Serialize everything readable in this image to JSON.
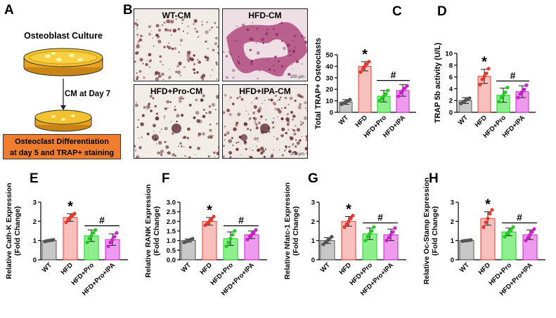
{
  "panels": {
    "A": {
      "letter": "A",
      "culture_label": "Osteoblast Culture",
      "arrow_label": "CM at Day 7",
      "box_line1": "Osteoclast Differentiation",
      "box_line2": "at day 5 and TRAP+ staining",
      "box_color": "#f07d2e"
    },
    "B": {
      "letter": "B",
      "images": [
        {
          "label": "WT-CM",
          "scale": ""
        },
        {
          "label": "HFD-CM",
          "scale": "200 µm"
        },
        {
          "label": "HFD+Pro-CM",
          "scale": ""
        },
        {
          "label": "HFD+IPA-CM",
          "scale": "200 µm"
        }
      ]
    }
  },
  "colors": {
    "WT": "#c8c8c8",
    "HFD": "#f8c0bd",
    "Pro": "#8df08d",
    "IPA": "#ee9aee",
    "WT_dot": "#555555",
    "HFD_dot": "#e8392f",
    "Pro_dot": "#22cc22",
    "IPA_dot": "#cc22cc"
  },
  "chart_data": [
    {
      "letter": "C",
      "type": "bar",
      "ylabel": "Total TRAP+ Osteoclasts",
      "ylim": [
        0,
        50
      ],
      "yticks": [
        "0",
        "10",
        "20",
        "30",
        "40",
        "50"
      ],
      "categories": [
        "WT",
        "HFD",
        "HFD+Pro",
        "HFD+IPA"
      ],
      "values": [
        9,
        40,
        14,
        19
      ],
      "errors": [
        2,
        4,
        5,
        5
      ],
      "points": [
        [
          7,
          8,
          9,
          10,
          11
        ],
        [
          35,
          38,
          40,
          42,
          44
        ],
        [
          10,
          12,
          14,
          16,
          19
        ],
        [
          14,
          17,
          19,
          21,
          23
        ]
      ],
      "star": "*",
      "hash": "#"
    },
    {
      "letter": "D",
      "type": "bar",
      "ylabel": "TRAP 5b activity (U/L)",
      "ylim": [
        0,
        10
      ],
      "yticks": [
        "0",
        "2",
        "4",
        "6",
        "8",
        "10"
      ],
      "categories": [
        "WT",
        "HFD",
        "HFD+Pro",
        "HFD+IPA"
      ],
      "values": [
        2,
        6.1,
        2.9,
        3.5
      ],
      "errors": [
        0.5,
        1.2,
        1.2,
        1.0
      ],
      "points": [
        [
          1.5,
          1.8,
          2.0,
          2.2,
          2.4
        ],
        [
          4.7,
          5.6,
          6.1,
          6.6,
          7.4
        ],
        [
          1.8,
          2.5,
          2.9,
          3.4,
          4.2
        ],
        [
          2.5,
          3.1,
          3.5,
          3.9,
          4.6
        ]
      ],
      "star": "*",
      "hash": "#"
    },
    {
      "letter": "E",
      "type": "bar",
      "ylabel": "Relative Cath-K Expression\n(Fold Change)",
      "ylim": [
        0,
        3
      ],
      "yticks": [
        "0",
        "1",
        "2",
        "3"
      ],
      "categories": [
        "WT",
        "HFD",
        "HFD+Pro",
        "HFD+Pro+IPA"
      ],
      "values": [
        1.0,
        2.2,
        1.25,
        1.05
      ],
      "errors": [
        0.05,
        0.2,
        0.3,
        0.3
      ],
      "points": [
        [
          0.95,
          0.98,
          1.0,
          1.02,
          1.04
        ],
        [
          1.95,
          2.1,
          2.2,
          2.3,
          2.4
        ],
        [
          0.9,
          1.1,
          1.25,
          1.4,
          1.55
        ],
        [
          0.7,
          0.9,
          1.05,
          1.2,
          1.4
        ]
      ],
      "star": "*",
      "hash": "#"
    },
    {
      "letter": "F",
      "type": "bar",
      "ylabel": "Relative RANK Expression\n(Fold Change)",
      "ylim": [
        0,
        3
      ],
      "yticks": [
        "0.0",
        "0.5",
        "1.0",
        "1.5",
        "2.0",
        "2.5",
        "3.0"
      ],
      "categories": [
        "WT",
        "HFD",
        "HFD+Pro",
        "HFD+Pro+IPA"
      ],
      "values": [
        1.0,
        2.0,
        1.1,
        1.3
      ],
      "errors": [
        0.08,
        0.2,
        0.35,
        0.2
      ],
      "points": [
        [
          0.9,
          0.95,
          1.0,
          1.05,
          1.1
        ],
        [
          1.8,
          1.9,
          2.0,
          2.1,
          2.25
        ],
        [
          0.7,
          0.9,
          1.1,
          1.3,
          1.5
        ],
        [
          1.05,
          1.2,
          1.3,
          1.4,
          1.55
        ]
      ],
      "star": "*",
      "hash": "#"
    },
    {
      "letter": "G",
      "type": "bar",
      "ylabel": "Relative Nfatc-1 Expression\n(Fold Change)",
      "ylim": [
        0,
        3
      ],
      "yticks": [
        "0",
        "1",
        "2",
        "3"
      ],
      "categories": [
        "WT",
        "HFD",
        "HFD+Pro",
        "HFD+Pro+IPA"
      ],
      "values": [
        1.0,
        2.0,
        1.35,
        1.3
      ],
      "errors": [
        0.15,
        0.25,
        0.3,
        0.3
      ],
      "points": [
        [
          0.8,
          0.9,
          1.0,
          1.1,
          1.2
        ],
        [
          1.7,
          1.85,
          2.0,
          2.15,
          2.3
        ],
        [
          1.0,
          1.2,
          1.35,
          1.5,
          1.7
        ],
        [
          1.0,
          1.15,
          1.3,
          1.45,
          1.65
        ]
      ],
      "star": "*",
      "hash": "#"
    },
    {
      "letter": "H",
      "type": "bar",
      "ylabel": "Relative Oc-Stamp Expression\n(Fold Change)",
      "ylim": [
        0,
        3
      ],
      "yticks": [
        "0",
        "1",
        "2",
        "3"
      ],
      "categories": [
        "WT",
        "HFD",
        "HFD+Pro",
        "HFD+Pro+IPA"
      ],
      "values": [
        1.0,
        2.15,
        1.45,
        1.3
      ],
      "errors": [
        0.03,
        0.35,
        0.2,
        0.25
      ],
      "points": [
        [
          0.97,
          0.99,
          1.0,
          1.01,
          1.03
        ],
        [
          1.7,
          1.95,
          2.15,
          2.4,
          2.6
        ],
        [
          1.2,
          1.35,
          1.45,
          1.55,
          1.7
        ],
        [
          1.0,
          1.15,
          1.3,
          1.45,
          1.6
        ]
      ],
      "star": "*",
      "hash": "#"
    }
  ]
}
